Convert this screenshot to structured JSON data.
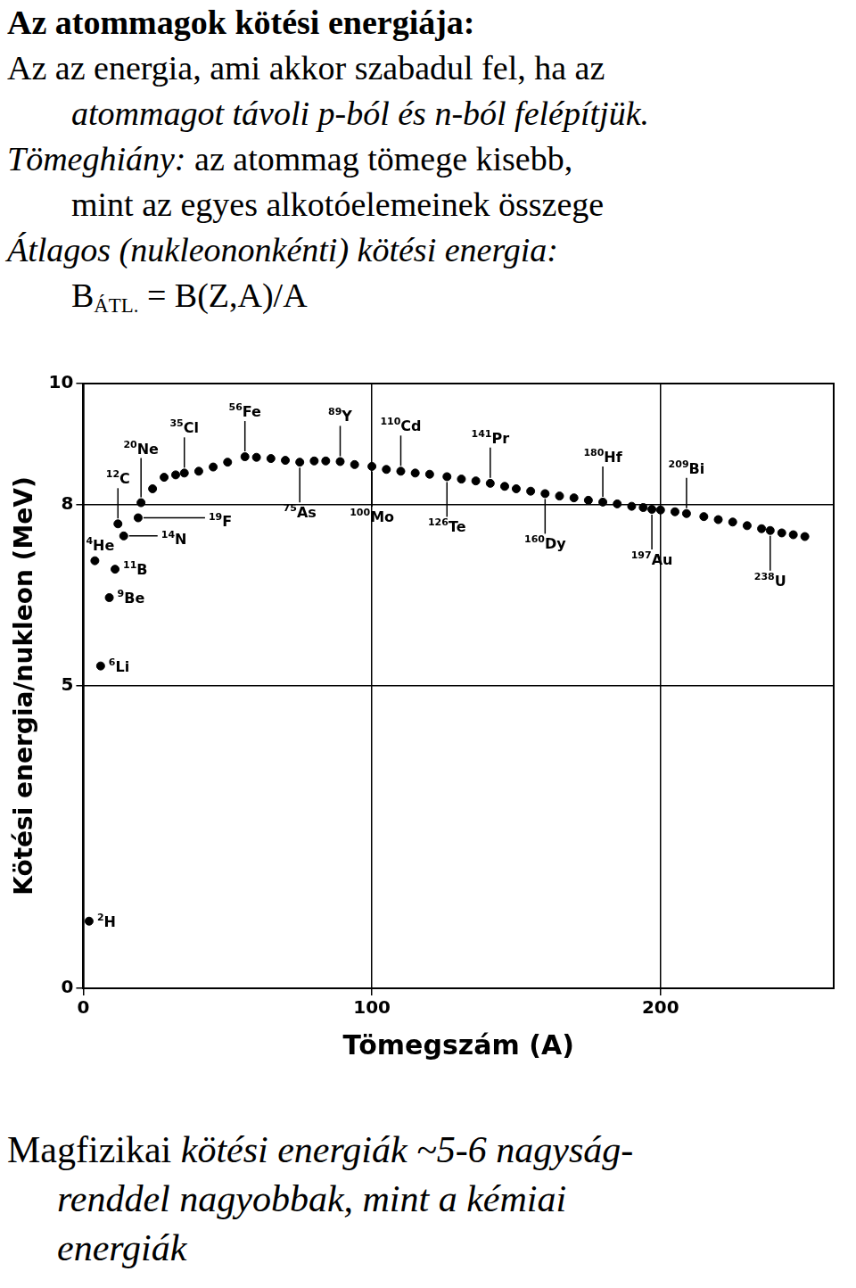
{
  "text_top": [
    [
      {
        "text": "Az atommagok kötési energiája:",
        "style": "bold"
      }
    ],
    [
      {
        "text": "Az az energia, ami akkor szabadul fel, ha az",
        "style": "normal"
      }
    ],
    [
      {
        "text": "atommagot távoli p-ból és n-ból felépítjük.",
        "style": "italic"
      }
    ],
    [
      {
        "text": "Tömeghiány:",
        "style": "italic"
      },
      {
        "text": " az atommag tömege kisebb,",
        "style": "normal"
      }
    ],
    [
      {
        "text": "mint az egyes alkotóelemeinek összege",
        "style": "normal"
      }
    ],
    [
      {
        "text": "Átlagos (nukleononkénti) kötési energia:",
        "style": "italic"
      }
    ],
    [
      {
        "text": "B",
        "style": "normal"
      },
      {
        "text": "ÁTL.",
        "style": "sub"
      },
      {
        "text": " = B(Z,A)/A",
        "style": "normal"
      }
    ]
  ],
  "chart_data": {
    "type": "scatter",
    "xlabel": "Tömegszám (A)",
    "ylabel": "Kötési energia/nukleon (MeV)",
    "x": [
      2,
      4,
      6,
      9,
      11,
      12,
      14,
      19,
      20,
      24,
      28,
      32,
      35,
      40,
      45,
      50,
      56,
      60,
      65,
      70,
      75,
      80,
      84,
      89,
      94,
      100,
      105,
      110,
      115,
      120,
      126,
      131,
      136,
      141,
      146,
      150,
      155,
      160,
      165,
      170,
      175,
      180,
      185,
      190,
      194,
      197,
      200,
      205,
      209,
      215,
      220,
      225,
      230,
      235,
      238,
      242,
      246,
      250
    ],
    "values": [
      1.11,
      7.07,
      5.33,
      6.46,
      6.93,
      7.68,
      7.48,
      7.78,
      8.03,
      8.26,
      8.45,
      8.49,
      8.52,
      8.55,
      8.62,
      8.7,
      8.79,
      8.78,
      8.76,
      8.73,
      8.7,
      8.72,
      8.72,
      8.71,
      8.66,
      8.63,
      8.58,
      8.55,
      8.52,
      8.5,
      8.46,
      8.42,
      8.39,
      8.35,
      8.3,
      8.26,
      8.22,
      8.18,
      8.14,
      8.11,
      8.07,
      8.04,
      8.01,
      7.97,
      7.95,
      7.92,
      7.91,
      7.88,
      7.85,
      7.8,
      7.75,
      7.71,
      7.65,
      7.6,
      7.57,
      7.53,
      7.5,
      7.47
    ],
    "point_labels": [
      "2H",
      "4He",
      "6Li",
      "9Be",
      "11B",
      "12C",
      "14N",
      "19F",
      "20Ne",
      null,
      null,
      null,
      "35Cl",
      null,
      null,
      null,
      "56Fe",
      null,
      null,
      null,
      "75As",
      null,
      null,
      "89Y",
      null,
      "100Mo",
      null,
      "110Cd",
      null,
      null,
      "126Te",
      null,
      null,
      "141Pr",
      null,
      null,
      null,
      "160Dy",
      null,
      null,
      null,
      "180Hf",
      null,
      null,
      null,
      "197Au",
      null,
      null,
      "209Bi",
      null,
      null,
      null,
      null,
      null,
      "238U",
      null,
      null,
      null
    ],
    "xlim": [
      0,
      260
    ],
    "xticks": [
      0,
      100,
      200
    ],
    "ylim": [
      0,
      10
    ],
    "yticks": [
      0,
      5,
      8,
      10
    ],
    "grid": true,
    "color": "#000000",
    "marker": "circle"
  },
  "text_bottom": [
    [
      {
        "text": "Magfizikai ",
        "style": "normal"
      },
      {
        "text": "kötési energiák ~5-6 nagyság-",
        "style": "italic"
      }
    ],
    [
      {
        "text": "renddel nagyobbak, mint a kémiai",
        "style": "italic"
      }
    ],
    [
      {
        "text": "energiák",
        "style": "italic"
      }
    ]
  ]
}
